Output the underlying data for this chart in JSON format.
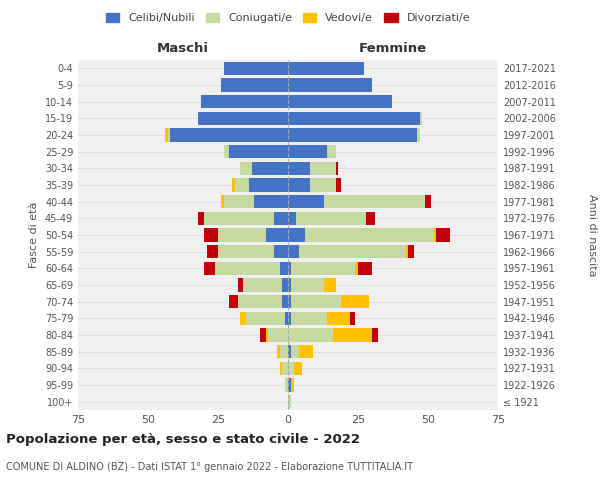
{
  "age_groups": [
    "100+",
    "95-99",
    "90-94",
    "85-89",
    "80-84",
    "75-79",
    "70-74",
    "65-69",
    "60-64",
    "55-59",
    "50-54",
    "45-49",
    "40-44",
    "35-39",
    "30-34",
    "25-29",
    "20-24",
    "15-19",
    "10-14",
    "5-9",
    "0-4"
  ],
  "birth_years": [
    "≤ 1921",
    "1922-1926",
    "1927-1931",
    "1932-1936",
    "1937-1941",
    "1942-1946",
    "1947-1951",
    "1952-1956",
    "1957-1961",
    "1962-1966",
    "1967-1971",
    "1972-1976",
    "1977-1981",
    "1982-1986",
    "1987-1991",
    "1992-1996",
    "1997-2001",
    "2002-2006",
    "2007-2011",
    "2012-2016",
    "2017-2021"
  ],
  "male": {
    "celibe": [
      0,
      0,
      0,
      0,
      0,
      1,
      2,
      2,
      3,
      5,
      8,
      5,
      12,
      14,
      13,
      21,
      42,
      32,
      31,
      24,
      23
    ],
    "coniugato": [
      0,
      1,
      2,
      3,
      7,
      14,
      16,
      14,
      23,
      20,
      17,
      25,
      11,
      5,
      4,
      2,
      1,
      0,
      0,
      0,
      0
    ],
    "vedovo": [
      0,
      0,
      1,
      1,
      1,
      2,
      0,
      0,
      0,
      0,
      0,
      0,
      1,
      1,
      0,
      0,
      1,
      0,
      0,
      0,
      0
    ],
    "divorziato": [
      0,
      0,
      0,
      0,
      2,
      0,
      3,
      2,
      4,
      4,
      5,
      2,
      0,
      0,
      0,
      0,
      0,
      0,
      0,
      0,
      0
    ]
  },
  "female": {
    "nubile": [
      0,
      1,
      0,
      1,
      0,
      1,
      1,
      1,
      1,
      4,
      6,
      3,
      13,
      8,
      8,
      14,
      46,
      47,
      37,
      30,
      27
    ],
    "coniugata": [
      1,
      0,
      2,
      3,
      16,
      13,
      18,
      12,
      23,
      38,
      46,
      25,
      36,
      9,
      9,
      3,
      1,
      1,
      0,
      0,
      0
    ],
    "vedova": [
      0,
      1,
      3,
      5,
      14,
      8,
      10,
      4,
      1,
      1,
      1,
      0,
      0,
      0,
      0,
      0,
      0,
      0,
      0,
      0,
      0
    ],
    "divorziata": [
      0,
      0,
      0,
      0,
      2,
      2,
      0,
      0,
      5,
      2,
      5,
      3,
      2,
      2,
      1,
      0,
      0,
      0,
      0,
      0,
      0
    ]
  },
  "colors": {
    "celibe": "#4472c4",
    "coniugato": "#c5d9a0",
    "vedovo": "#ffc000",
    "divorziato": "#c0000c"
  },
  "title": "Popolazione per età, sesso e stato civile - 2022",
  "subtitle": "COMUNE DI ALDINO (BZ) - Dati ISTAT 1° gennaio 2022 - Elaborazione TUTTITALIA.IT",
  "xlabel_left": "Maschi",
  "xlabel_right": "Femmine",
  "ylabel_left": "Fasce di età",
  "ylabel_right": "Anni di nascita",
  "xlim": 75,
  "legend_labels": [
    "Celibi/Nubili",
    "Coniugati/e",
    "Vedovi/e",
    "Divorziati/e"
  ],
  "background_color": "#ffffff",
  "plot_bg_color": "#f0f0f0",
  "grid_color": "#cccccc"
}
